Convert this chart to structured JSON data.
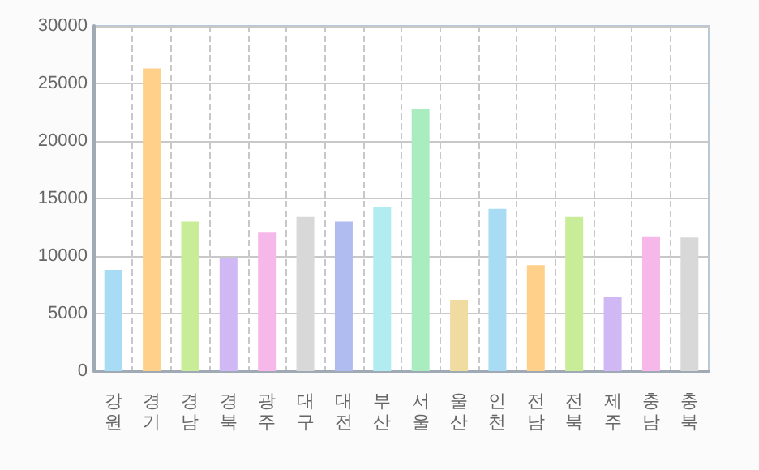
{
  "chart_data": {
    "type": "bar",
    "categories": [
      "강원",
      "경기",
      "경남",
      "경북",
      "광주",
      "대구",
      "대전",
      "부산",
      "서울",
      "울산",
      "인천",
      "전남",
      "전북",
      "제주",
      "충남",
      "충북"
    ],
    "values": [
      8800,
      26300,
      13000,
      9800,
      12100,
      13400,
      13000,
      14300,
      22800,
      6200,
      14100,
      9200,
      13400,
      6400,
      11700,
      11600
    ],
    "colors": [
      "#a8dcf5",
      "#ffd08a",
      "#c8ec98",
      "#d0b8f5",
      "#f5b8e8",
      "#d8d8d8",
      "#b0bcf0",
      "#b0ecf0",
      "#a8ecc0",
      "#f0dca0",
      "#a8dcf5",
      "#ffd08a",
      "#c8ec98",
      "#d0b8f5",
      "#f5b8e8",
      "#d8d8d8"
    ],
    "ylim": [
      0,
      30000
    ],
    "yticks": [
      0,
      5000,
      10000,
      15000,
      20000,
      25000,
      30000
    ],
    "grid": true
  }
}
